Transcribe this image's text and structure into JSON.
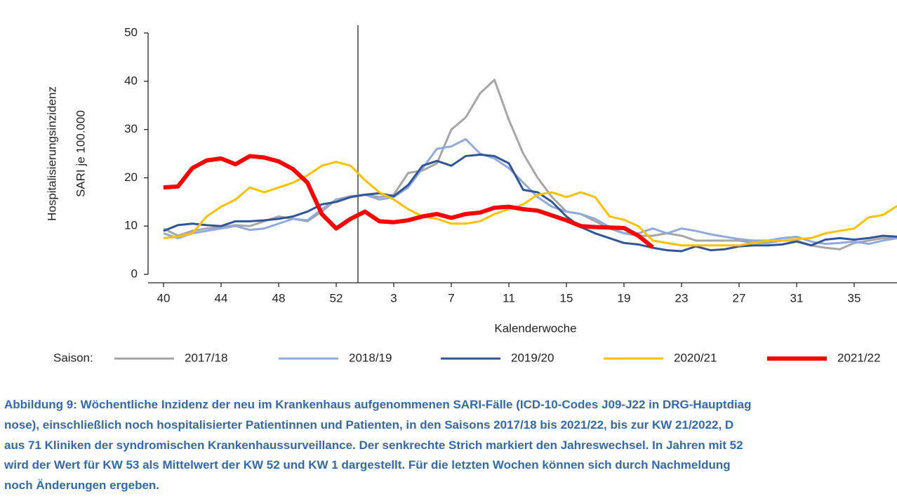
{
  "chart_data": {
    "type": "line",
    "y_label": [
      "Hospitalisierungsinzidenz",
      "SARI je 100.000"
    ],
    "x_label": "Kalenderwoche",
    "categories": [
      40,
      null,
      null,
      null,
      44,
      null,
      null,
      null,
      48,
      null,
      null,
      null,
      52,
      null,
      null,
      null,
      3,
      null,
      null,
      null,
      7,
      null,
      null,
      null,
      11,
      null,
      null,
      null,
      15,
      null,
      null,
      null,
      19,
      null,
      null,
      null,
      23,
      null,
      null,
      null,
      27,
      null,
      null,
      null,
      31,
      null,
      null,
      null,
      35,
      null,
      null,
      null
    ],
    "ylim": [
      0,
      50
    ],
    "yticks": [
      0,
      10,
      20,
      30,
      40,
      50
    ],
    "legend_title": "Saison:",
    "series": [
      {
        "name": "2017/18",
        "color": "#a6a6a6",
        "line_width": 3,
        "values": [
          9.5,
          8,
          9,
          9.5,
          9.8,
          10.2,
          10,
          11,
          12,
          11.5,
          11,
          13,
          15.5,
          16.2,
          16.5,
          16,
          16.5,
          21,
          21.5,
          23,
          30,
          32.5,
          37.5,
          40.3,
          32,
          25,
          20,
          16,
          13,
          12.5,
          11,
          9.5,
          8.5,
          8,
          8,
          8.5,
          8,
          7,
          7,
          7,
          7,
          6.5,
          6.5,
          7,
          7,
          6,
          5.5,
          5.2,
          6.5,
          7,
          7.5,
          7.5
        ]
      },
      {
        "name": "2018/19",
        "color": "#8faadc",
        "line_width": 3,
        "values": [
          8.5,
          7.5,
          8.5,
          9,
          9.5,
          10,
          9.2,
          9.5,
          10.5,
          11.5,
          11.2,
          13.5,
          15.5,
          16,
          16.5,
          15.5,
          16,
          18,
          22,
          26,
          26.5,
          28,
          25,
          24,
          22,
          19,
          16,
          14,
          13,
          12.5,
          11.5,
          9.8,
          8.5,
          8.5,
          9.5,
          8.5,
          9.5,
          9,
          8.3,
          7.8,
          7.3,
          7,
          7,
          7.5,
          7.8,
          6.8,
          6.3,
          6.5,
          6.8,
          6.3,
          7,
          7.5
        ]
      },
      {
        "name": "2019/20",
        "color": "#2f5597",
        "line_width": 3,
        "values": [
          9,
          10.2,
          10.5,
          10.2,
          10,
          11,
          11,
          11.2,
          11.5,
          12,
          13,
          14.5,
          15,
          16,
          16.5,
          16.8,
          16.2,
          18.5,
          22.5,
          23.5,
          22.5,
          24.5,
          24.8,
          24.5,
          23,
          17.5,
          17,
          15,
          12,
          9.8,
          8.5,
          7.5,
          6.5,
          6.2,
          5.5,
          5,
          4.8,
          5.8,
          5,
          5.2,
          5.8,
          6,
          6,
          6.2,
          6.8,
          6,
          7.2,
          7.5,
          7.2,
          7.5,
          8,
          7.8
        ]
      },
      {
        "name": "2020/21",
        "color": "#ffc000",
        "line_width": 3,
        "values": [
          7.5,
          7.8,
          8.5,
          12,
          14,
          15.5,
          18,
          17,
          18,
          19,
          20.5,
          22.5,
          23.3,
          22.5,
          19.5,
          17,
          15.5,
          13.5,
          12,
          11.5,
          10.5,
          10.5,
          11,
          12.5,
          13.5,
          14.5,
          16.5,
          17,
          16,
          17,
          16,
          12,
          11.3,
          10,
          7,
          6.5,
          6,
          6,
          6,
          6,
          6,
          6.5,
          7,
          7,
          7.3,
          7.5,
          8.5,
          9,
          9.5,
          11.8,
          12.3,
          14.2
        ]
      },
      {
        "name": "2021/22",
        "color": "#ff0000",
        "line_width": 6,
        "values": [
          18,
          18.2,
          22,
          23.6,
          24,
          22.8,
          24.5,
          24.2,
          23.4,
          21.8,
          19,
          12.5,
          9.5,
          11.5,
          13,
          11,
          10.8,
          11.2,
          12,
          12.5,
          11.7,
          12.5,
          12.8,
          13.8,
          14,
          13.5,
          13.2,
          12.2,
          11.2,
          10,
          9.8,
          9.7,
          9.6,
          8,
          5.6,
          null,
          null,
          null,
          null,
          null,
          null,
          null,
          null,
          null,
          null,
          null,
          null,
          null,
          null,
          null,
          null,
          null
        ]
      }
    ],
    "caption": [
      "Abbildung 9: Wöchentliche Inzidenz der neu im Krankenhaus aufgenommenen SARI-Fälle (ICD-10-Codes J09-J22 in DRG-Hauptdiag",
      "nose), einschließlich noch hospitalisierter Patientinnen und Patienten, in den Saisons 2017/18 bis 2021/22, bis zur KW 21/2022, D",
      "aus 71 Kliniken der syndromischen Krankenhaussurveillance. Der senkrechte Strich markiert den Jahreswechsel. In Jahren mit 52",
      "wird der Wert für KW 53 als Mittelwert der KW 52 und KW 1 dargestellt. Für die letzten Wochen können sich durch Nachmeldung",
      "noch Änderungen ergeben."
    ]
  }
}
